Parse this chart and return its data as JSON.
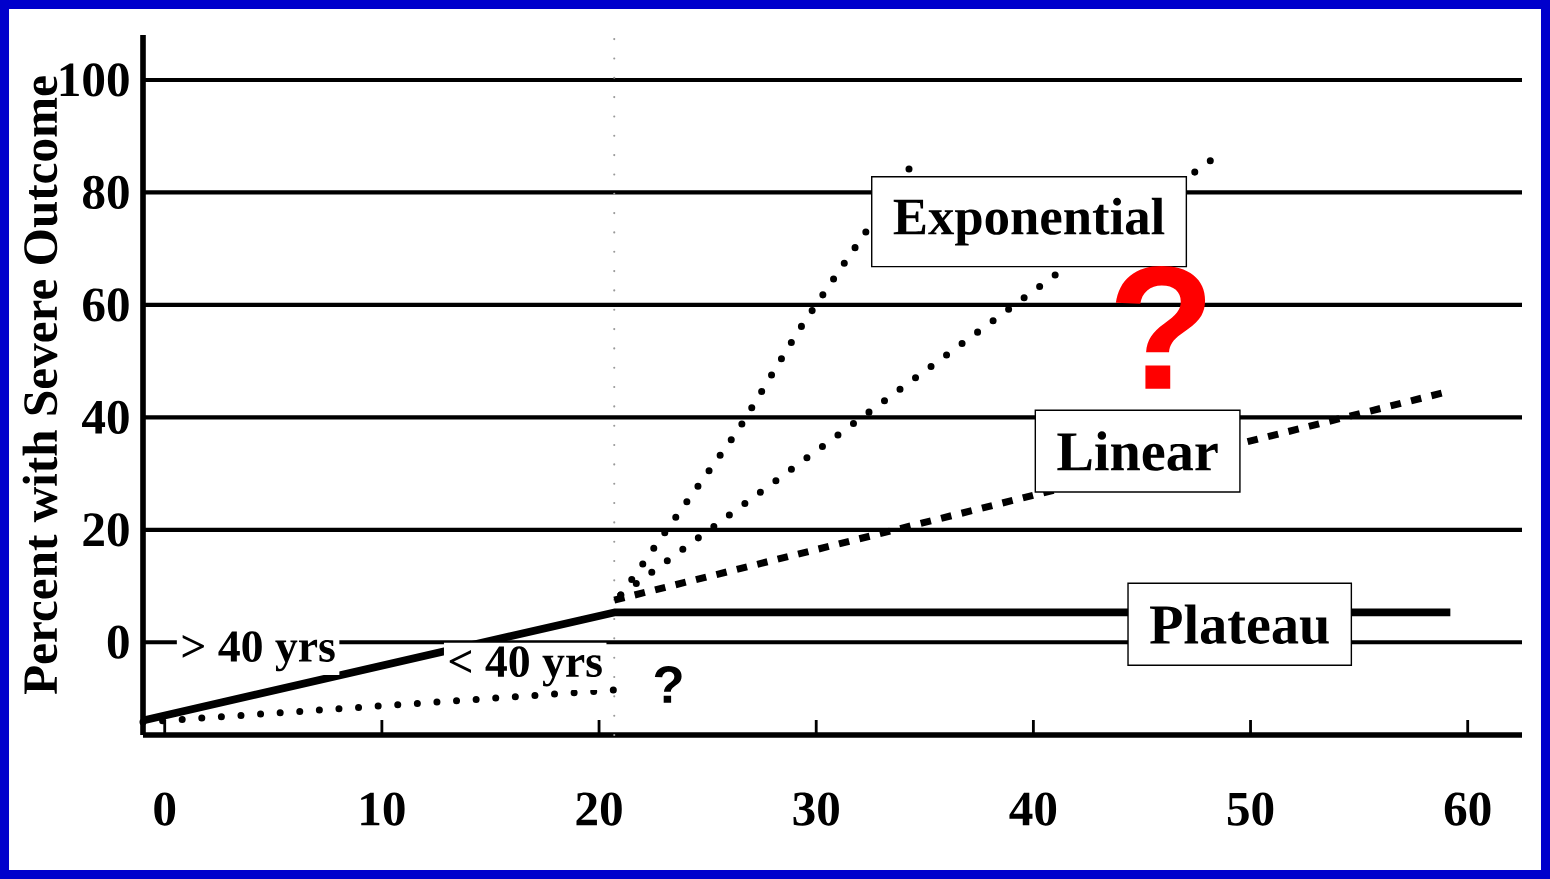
{
  "chart_data": {
    "type": "line",
    "ylabel": "Percent with Severe Outcome",
    "xlim": [
      -1,
      62.5
    ],
    "ylim": [
      -16.5,
      108
    ],
    "xticks": [
      0,
      10,
      20,
      30,
      40,
      50,
      60
    ],
    "yticks": [
      0,
      20,
      40,
      60,
      80,
      100
    ],
    "grid": "y",
    "marker": "none",
    "series": [
      {
        "color": "#000000",
        "line_style": "solid",
        "x": [
          -1,
          20.7,
          59.2
        ],
        "values": [
          -13.9,
          5.3,
          5.3
        ]
      },
      {
        "color": "#000000",
        "line_style": "dotted",
        "x": [
          -1,
          20.7
        ],
        "values": [
          -14.2,
          -8.5
        ]
      },
      {
        "color": "#000000",
        "line_style": "dashed",
        "x": [
          20.7,
          58.8
        ],
        "values": [
          7.5,
          44.3
        ]
      },
      {
        "color": "#000000",
        "line_style": "dotted",
        "x": [
          21,
          48.2
        ],
        "values": [
          8.4,
          85.8
        ]
      },
      {
        "color": "#000000",
        "line_style": "dotted",
        "x": [
          21,
          23.6,
          26.4,
          29.2,
          31.4,
          34.3
        ],
        "values": [
          8.4,
          22.6,
          37.7,
          55.5,
          68,
          84.3
        ]
      }
    ],
    "ref_lines": [
      {
        "axis": "x",
        "value": 20.7,
        "color": "#999999",
        "line_style": "dotted"
      }
    ],
    "annotations": [
      "Exponential",
      "Linear",
      "Plateau",
      "> 40 yrs",
      "< 40 yrs",
      "?",
      "?"
    ]
  }
}
